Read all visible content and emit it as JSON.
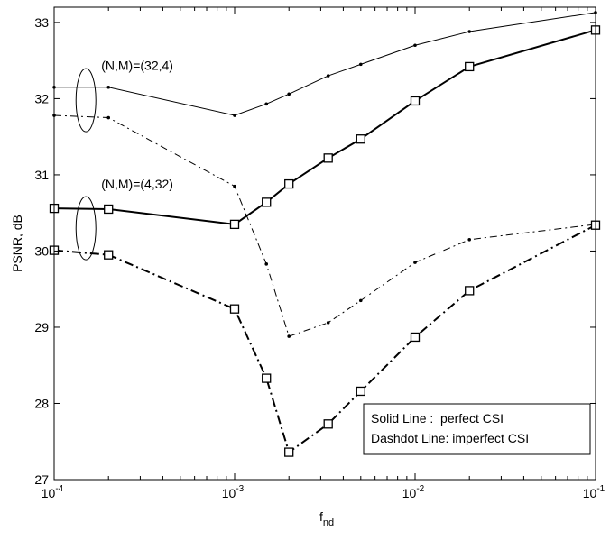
{
  "chart_data": {
    "type": "line",
    "title": "",
    "xlabel": "f",
    "xlabel_sub": "nd",
    "ylabel": "PSNR, dB",
    "xscale": "log",
    "xlim": [
      0.0001,
      0.1
    ],
    "ylim": [
      27,
      33.2
    ],
    "grid": false,
    "x_ticks": [
      {
        "value": 0.0001,
        "base": "10",
        "exp": "-4"
      },
      {
        "value": 0.001,
        "base": "10",
        "exp": "-3"
      },
      {
        "value": 0.01,
        "base": "10",
        "exp": "-2"
      },
      {
        "value": 0.1,
        "base": "10",
        "exp": "-1"
      }
    ],
    "y_ticks": [
      27,
      28,
      29,
      30,
      31,
      32,
      33
    ],
    "series": [
      {
        "style": "solid-thin-dot",
        "x": [
          0.0001,
          0.0002,
          0.001,
          0.0015,
          0.002,
          0.0033,
          0.005,
          0.01,
          0.02,
          0.1
        ],
        "values": [
          32.15,
          32.15,
          31.78,
          31.93,
          32.06,
          32.3,
          32.45,
          32.7,
          32.88,
          33.13
        ]
      },
      {
        "style": "dashdot-thin-dot",
        "x": [
          0.0001,
          0.0002,
          0.001,
          0.0015,
          0.002,
          0.0033,
          0.005,
          0.01,
          0.02,
          0.1
        ],
        "values": [
          31.78,
          31.75,
          30.85,
          29.83,
          28.88,
          29.06,
          29.35,
          29.85,
          30.15,
          30.35
        ]
      },
      {
        "style": "solid-thick-square",
        "x": [
          0.0001,
          0.0002,
          0.001,
          0.0015,
          0.002,
          0.0033,
          0.005,
          0.01,
          0.02,
          0.1
        ],
        "values": [
          30.56,
          30.55,
          30.35,
          30.64,
          30.88,
          31.22,
          31.47,
          31.97,
          32.42,
          32.9
        ]
      },
      {
        "style": "dashdot-thick-square",
        "x": [
          0.0001,
          0.0002,
          0.001,
          0.0015,
          0.002,
          0.0033,
          0.005,
          0.01,
          0.02,
          0.1
        ],
        "values": [
          30.01,
          29.95,
          29.24,
          28.33,
          27.36,
          27.73,
          28.16,
          28.87,
          29.48,
          30.34
        ]
      }
    ],
    "annotations": [
      {
        "text": "(N,M)=(32,4)",
        "x": 0.0002,
        "y": 32.38,
        "ellipse": {
          "x": 0.00015,
          "y": 31.98
        }
      },
      {
        "text": "(N,M)=(4,32)",
        "x": 0.0002,
        "y": 30.82,
        "ellipse": {
          "x": 0.00015,
          "y": 30.3
        }
      }
    ],
    "legend": {
      "position": "bottom-right",
      "entries": [
        "Solid Line :  perfect CSI",
        "Dashdot Line: imperfect CSI"
      ]
    }
  }
}
